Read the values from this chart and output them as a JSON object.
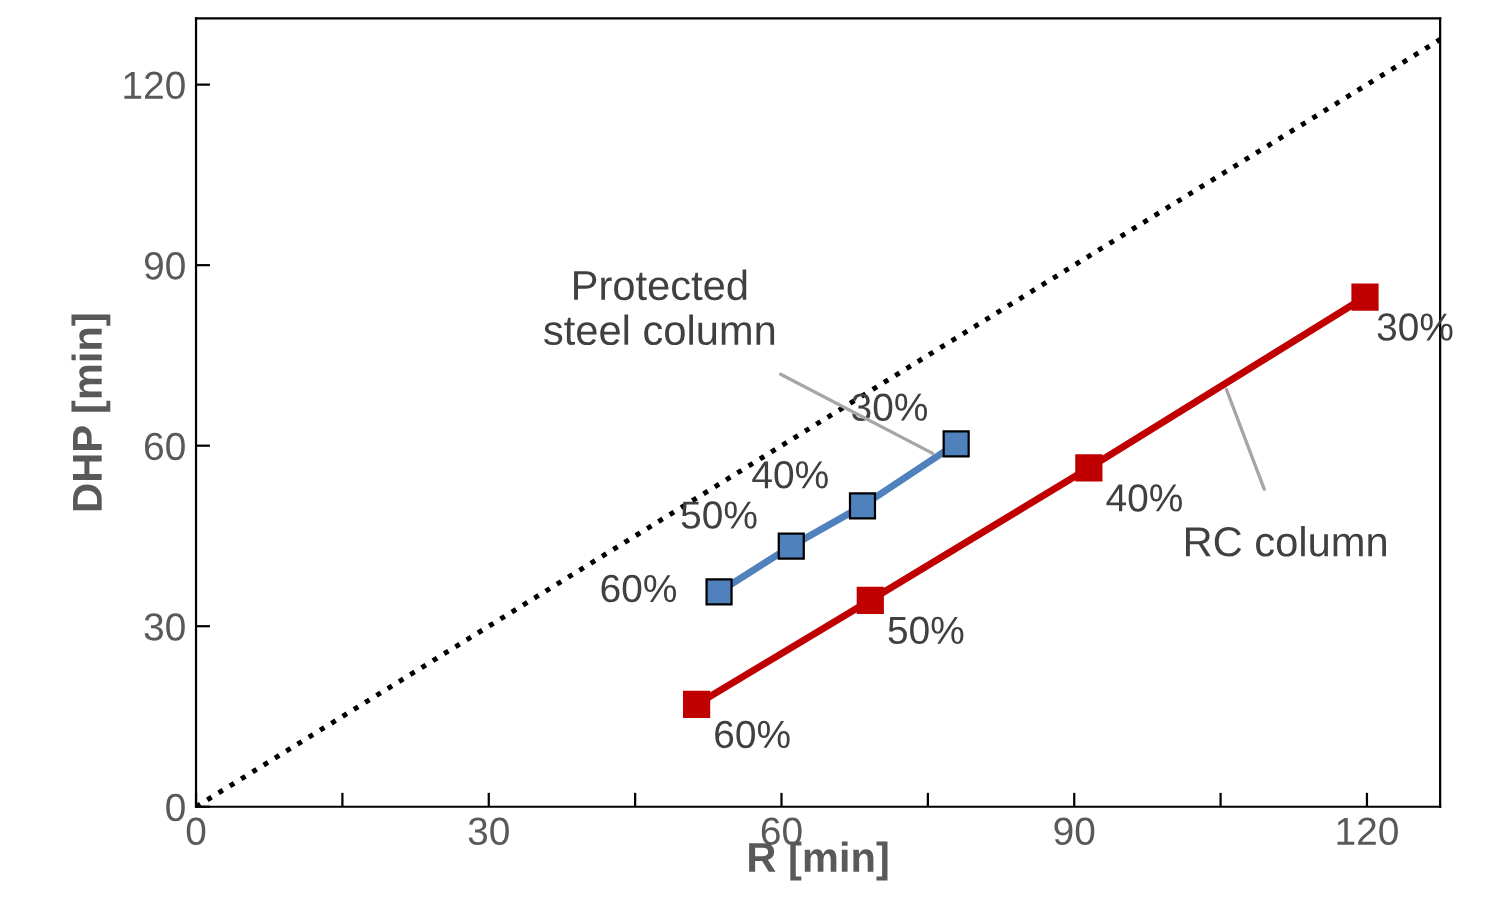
{
  "chart_data": {
    "type": "line",
    "xlabel": "R [min]",
    "ylabel": "DHP [min]",
    "xlim": [
      0,
      127.5
    ],
    "ylim": [
      0,
      131
    ],
    "xticks": [
      0,
      {
        "value": 15,
        "label": null
      },
      30,
      {
        "value": 45,
        "label": null
      },
      60,
      {
        "value": 75,
        "label": null
      },
      90,
      {
        "value": 105,
        "label": null
      },
      120
    ],
    "yticks": [
      0,
      30,
      60,
      90,
      120
    ],
    "grid": false,
    "series": [
      {
        "color": "#000000",
        "x": [
          0,
          127.5
        ],
        "values": [
          0,
          127.5
        ],
        "marker": "none",
        "line_style": "dotted"
      },
      {
        "color": "#4f81bd",
        "x": [
          53.6,
          61,
          68.3,
          77.9
        ],
        "values": [
          35.7,
          43.3,
          50,
          60.3
        ],
        "marker": "square",
        "line_style": "solid"
      },
      {
        "color": "#c00000",
        "x": [
          51.3,
          69.1,
          91.5,
          119.8
        ],
        "values": [
          17,
          34.3,
          56.3,
          84.7
        ],
        "marker": "square",
        "line_style": "solid"
      }
    ],
    "annotations": [
      {
        "text": "60%",
        "x": 53.6,
        "y": 35.7
      },
      {
        "text": "50%",
        "x": 61,
        "y": 43.3
      },
      {
        "text": "40%",
        "x": 68.3,
        "y": 50
      },
      {
        "text": "30%",
        "x": 77.9,
        "y": 60.3
      },
      {
        "text": "60%",
        "x": 51.3,
        "y": 17
      },
      {
        "text": "50%",
        "x": 69.1,
        "y": 34.3
      },
      {
        "text": "40%",
        "x": 91.5,
        "y": 56.3
      },
      {
        "text": "30%",
        "x": 119.8,
        "y": 84.7
      },
      {
        "text": "Protected\nsteel column",
        "x": 76,
        "y": 58.3
      },
      {
        "text": "RC column",
        "x": 105.4,
        "y": 70.2
      }
    ]
  }
}
